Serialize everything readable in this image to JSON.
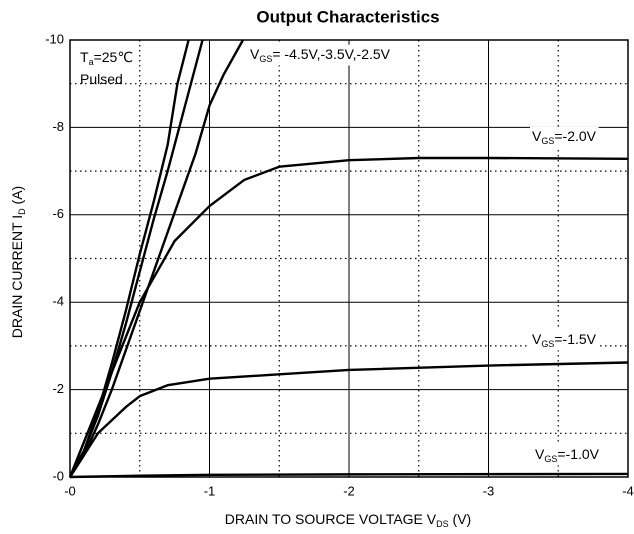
{
  "chart_data": {
    "type": "line",
    "title": "Output Characteristics",
    "xlabel": {
      "text": "DRAIN TO SOURCE VOLTAGE    V",
      "sub": "DS",
      "after": "    (V)"
    },
    "ylabel": {
      "text": "DRAIN CURRENT    I",
      "sub": "D",
      "after": "    (A)"
    },
    "xlim": [
      0,
      -4
    ],
    "ylim": [
      0,
      -10
    ],
    "xticks": [
      {
        "value": 0,
        "label": "-0"
      },
      -1,
      -2,
      -3,
      -4
    ],
    "yticks": [
      {
        "value": 0,
        "label": "-0"
      },
      -2,
      -4,
      -6,
      -8,
      -10
    ],
    "xminor_ticks": [
      -0.5,
      -1.5,
      -2.5,
      -3.5
    ],
    "yminor_ticks": [
      -1,
      -3,
      -5,
      -7,
      -9
    ],
    "grid": true,
    "annotations": [
      {
        "text": "T",
        "sub": "a",
        "after": "=25℃"
      },
      {
        "text": "Pulsed"
      },
      {
        "text": "V",
        "sub": "GS",
        "after": "= -4.5V,-3.5V,-2.5V"
      },
      {
        "text": "V",
        "sub": "GS",
        "after": "=-2.0V"
      },
      {
        "text": "V",
        "sub": "GS",
        "after": "=-1.5V"
      },
      {
        "text": "V",
        "sub": "GS",
        "after": "=-1.0V"
      }
    ],
    "series": [
      {
        "color": "#000000",
        "x": [
          0,
          -0.1,
          -0.2,
          -0.3,
          -0.4,
          -0.5,
          -0.6,
          -0.7,
          -0.77,
          -0.85
        ],
        "values": [
          0,
          -0.6,
          -1.5,
          -2.6,
          -3.8,
          -5.1,
          -6.3,
          -7.6,
          -9,
          -10
        ]
      },
      {
        "color": "#000000",
        "x": [
          0,
          -0.1,
          -0.2,
          -0.3,
          -0.4,
          -0.5,
          -0.6,
          -0.7,
          -0.8,
          -0.95
        ],
        "values": [
          0,
          -0.6,
          -1.4,
          -2.4,
          -3.5,
          -4.7,
          -5.9,
          -7,
          -8.2,
          -10
        ]
      },
      {
        "color": "#000000",
        "x": [
          0,
          -0.1,
          -0.2,
          -0.3,
          -0.4,
          -0.5,
          -0.6,
          -0.7,
          -0.8,
          -0.9,
          -1.0,
          -1.1,
          -1.24
        ],
        "values": [
          0,
          -0.5,
          -1.2,
          -2.0,
          -2.9,
          -3.8,
          -4.7,
          -5.6,
          -6.5,
          -7.4,
          -8.5,
          -9.2,
          -10
        ]
      },
      {
        "color": "#000000",
        "x": [
          0,
          -0.25,
          -0.5,
          -0.75,
          -1,
          -1.25,
          -1.5,
          -2,
          -2.5,
          -3,
          -4
        ],
        "values": [
          0,
          -2,
          -4,
          -5.4,
          -6.2,
          -6.8,
          -7.1,
          -7.25,
          -7.3,
          -7.3,
          -7.28
        ]
      },
      {
        "color": "#000000",
        "x": [
          0,
          -0.2,
          -0.4,
          -0.5,
          -0.7,
          -1,
          -1.5,
          -2,
          -3,
          -4
        ],
        "values": [
          0,
          -1,
          -1.6,
          -1.85,
          -2.1,
          -2.25,
          -2.35,
          -2.45,
          -2.55,
          -2.62
        ]
      },
      {
        "color": "#000000",
        "x": [
          0,
          -0.5,
          -1,
          -2,
          -4
        ],
        "values": [
          0,
          -0.03,
          -0.05,
          -0.06,
          -0.07
        ]
      }
    ]
  }
}
